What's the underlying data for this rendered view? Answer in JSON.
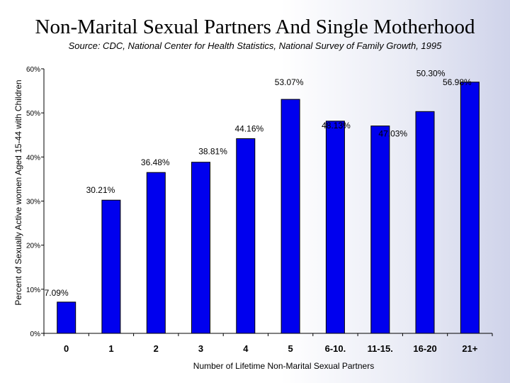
{
  "title": "Non-Marital Sexual Partners And Single Motherhood",
  "subtitle": "Source: CDC, National Center for Health Statistics, National Survey of Family Growth, 1995",
  "colors": {
    "bar": "#0000ee",
    "bar_edge": "#000000",
    "axis": "#000000"
  },
  "chart_data": {
    "type": "bar",
    "title": "Non-Marital Sexual Partners And Single Motherhood",
    "xlabel": "Number of Lifetime Non-Marital Sexual Partners",
    "ylabel": "Percent of Sexually Active women Aged 15-44 with Children",
    "categories": [
      "0",
      "1",
      "2",
      "3",
      "4",
      "5",
      "6-10.",
      "11-15.",
      "16-20",
      "21+"
    ],
    "values": [
      7.09,
      30.21,
      36.48,
      38.81,
      44.16,
      53.07,
      48.13,
      47.03,
      50.3,
      56.98
    ],
    "data_labels": [
      "7.09%",
      "30.21%",
      "36.48%",
      "38.81%",
      "44.16%",
      "53.07%",
      "48.13%",
      "47.03%",
      "50.30%",
      "56.98%"
    ],
    "yticks": [
      "0%",
      "10%",
      "20%",
      "30%",
      "40%",
      "50%",
      "60%"
    ],
    "ylim": [
      0,
      60
    ],
    "grid": false,
    "legend": "none"
  }
}
